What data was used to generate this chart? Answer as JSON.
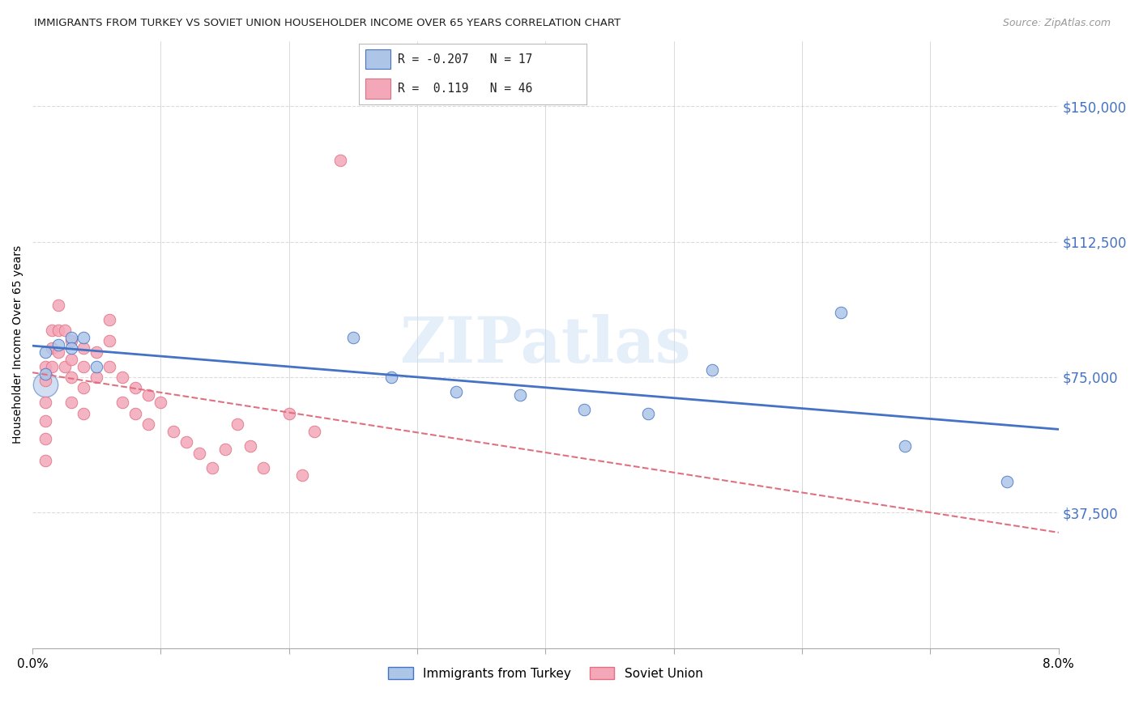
{
  "title": "IMMIGRANTS FROM TURKEY VS SOVIET UNION HOUSEHOLDER INCOME OVER 65 YEARS CORRELATION CHART",
  "source": "Source: ZipAtlas.com",
  "ylabel": "Householder Income Over 65 years",
  "legend_label1": "Immigrants from Turkey",
  "legend_label2": "Soviet Union",
  "r_turkey": "-0.207",
  "n_turkey": "17",
  "r_soviet": "0.119",
  "n_soviet": "46",
  "yticks": [
    0,
    37500,
    75000,
    112500,
    150000
  ],
  "ytick_labels": [
    "",
    "$37,500",
    "$75,000",
    "$112,500",
    "$150,000"
  ],
  "xmin": 0.0,
  "xmax": 0.08,
  "ymin": 0,
  "ymax": 168000,
  "turkey_color": "#adc6e8",
  "soviet_color": "#f4a7b9",
  "turkey_line_color": "#4472c4",
  "soviet_line_color": "#e07080",
  "watermark": "ZIPatlas",
  "background_color": "#ffffff",
  "grid_color": "#d8d8d8",
  "turkey_x": [
    0.001,
    0.001,
    0.002,
    0.003,
    0.003,
    0.004,
    0.005,
    0.025,
    0.028,
    0.033,
    0.038,
    0.043,
    0.048,
    0.053,
    0.063,
    0.068,
    0.076
  ],
  "turkey_y": [
    82000,
    76000,
    84000,
    86000,
    83000,
    86000,
    78000,
    86000,
    75000,
    71000,
    70000,
    66000,
    65000,
    77000,
    93000,
    56000,
    46000
  ],
  "soviet_x": [
    0.001,
    0.001,
    0.001,
    0.001,
    0.001,
    0.001,
    0.0015,
    0.0015,
    0.0015,
    0.002,
    0.002,
    0.002,
    0.0025,
    0.0025,
    0.003,
    0.003,
    0.003,
    0.003,
    0.004,
    0.004,
    0.004,
    0.004,
    0.005,
    0.005,
    0.006,
    0.006,
    0.006,
    0.007,
    0.007,
    0.008,
    0.008,
    0.009,
    0.009,
    0.01,
    0.011,
    0.012,
    0.013,
    0.014,
    0.015,
    0.016,
    0.017,
    0.018,
    0.02,
    0.021,
    0.022,
    0.024
  ],
  "soviet_y": [
    78000,
    74000,
    68000,
    63000,
    58000,
    52000,
    88000,
    83000,
    78000,
    95000,
    88000,
    82000,
    88000,
    78000,
    85000,
    80000,
    75000,
    68000,
    83000,
    78000,
    72000,
    65000,
    82000,
    75000,
    91000,
    85000,
    78000,
    75000,
    68000,
    72000,
    65000,
    70000,
    62000,
    68000,
    60000,
    57000,
    54000,
    50000,
    55000,
    62000,
    56000,
    50000,
    65000,
    48000,
    60000,
    135000
  ],
  "turkey_big_x": [
    0.001
  ],
  "turkey_big_y": [
    73000
  ]
}
